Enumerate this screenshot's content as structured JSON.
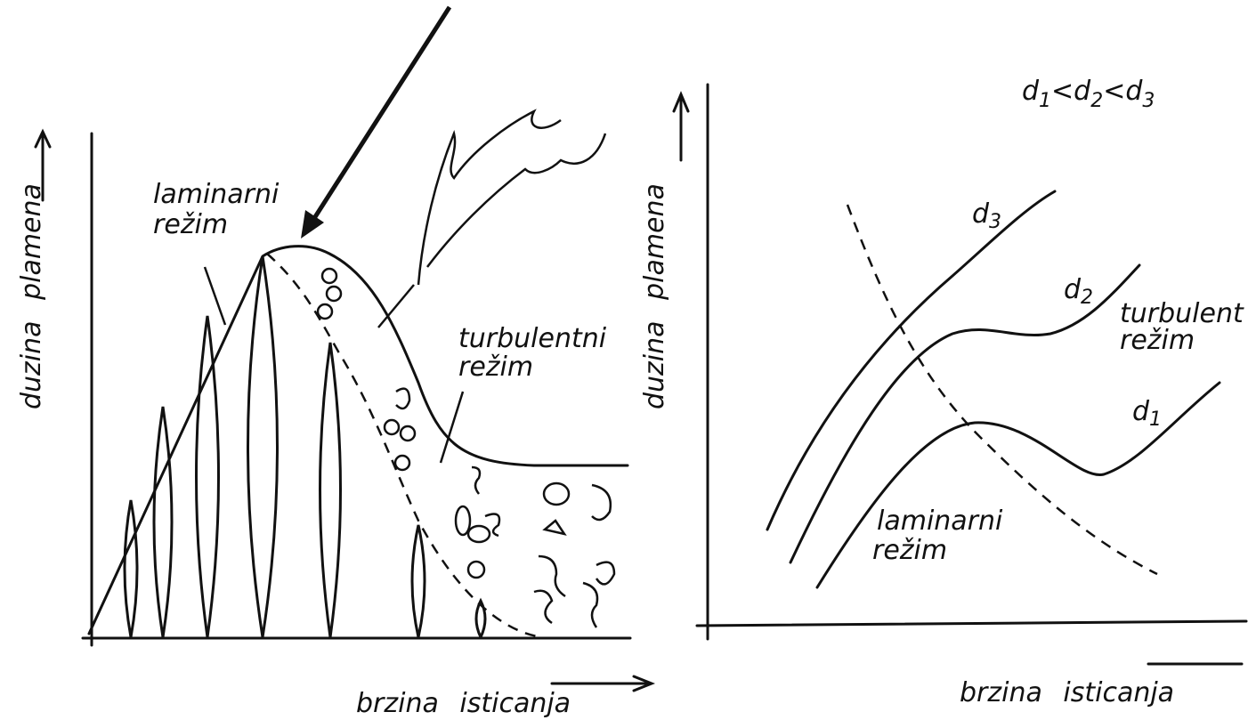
{
  "left": {
    "y_label": "duzina plamena",
    "x_label": "brzina isticanja",
    "laminar": [
      "laminarni",
      "režim"
    ],
    "turbulent": [
      "turbulentni",
      "režim"
    ]
  },
  "right": {
    "y_label": "duzina plamena",
    "x_label": "brzina isticanja",
    "condition": [
      "d",
      "1",
      "<d",
      "2",
      "<d",
      "3"
    ],
    "curves": [
      {
        "letter": "d",
        "index": "3"
      },
      {
        "letter": "d",
        "index": "2"
      },
      {
        "letter": "d",
        "index": "1"
      }
    ],
    "laminar": [
      "laminarni",
      "režim"
    ],
    "turbulent": [
      "turbulent",
      "režim"
    ]
  }
}
